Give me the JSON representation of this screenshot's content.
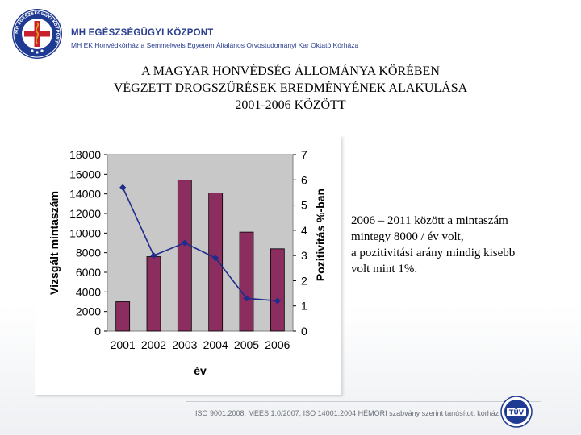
{
  "header": {
    "org_name": "MH EGÉSZSÉGÜGYI KÖZPONT",
    "org_sub": "MH EK Honvédkórház a Semmelweis Egyetem Általános Orvostudományi Kar Oktató Kórháza",
    "logo_ring_text": "MH EGÉSZSÉGÜGYI KÖZPONT"
  },
  "title": {
    "line1": "A MAGYAR HONVÉDSÉG ÁLLOMÁNYA KÖRÉBEN",
    "line2": "VÉGZETT DROGSZŰRÉSEK  EREDMÉNYÉNEK ALAKULÁSA",
    "line3": "2001-2006 KÖZÖTT"
  },
  "note": {
    "line1": "2006 – 2011 között a mintaszám",
    "line2": "mintegy 8000 / év volt,",
    "line3": "a pozitivitási arány mindig kisebb",
    "line4": "volt mint 1%."
  },
  "footer": {
    "text": "ISO 9001:2008; MEES 1.0/2007; ISO 14001:2004 HÉMORI szabvány szerint tanúsított kórház",
    "tuv_label": "TÜV"
  },
  "chart_data": {
    "type": "bar",
    "categories": [
      "2001",
      "2002",
      "2003",
      "2004",
      "2005",
      "2006"
    ],
    "xlabel": "év",
    "ylabel": "Vizsgált mintaszám",
    "ylabel_right": "Pozitivitás %-ban",
    "ylim": [
      0,
      18000
    ],
    "ylim_right": [
      0,
      7
    ],
    "yticks": [
      "0",
      "2000",
      "4000",
      "6000",
      "8000",
      "10000",
      "12000",
      "14000",
      "16000",
      "18000"
    ],
    "yticks_right": [
      "0",
      "1",
      "2",
      "3",
      "4",
      "5",
      "6",
      "7"
    ],
    "series": [
      {
        "type": "bar",
        "axis": "left",
        "values": [
          3000,
          7600,
          15400,
          14100,
          10100,
          8400
        ]
      },
      {
        "type": "line",
        "axis": "right",
        "values": [
          5.7,
          3.0,
          3.5,
          2.9,
          1.3,
          1.2
        ]
      }
    ],
    "colors": {
      "bar": "#8b2d5e",
      "line": "#1f2c8c",
      "plot_bg": "#c8c8c8"
    },
    "grid": false,
    "legend": "none"
  }
}
